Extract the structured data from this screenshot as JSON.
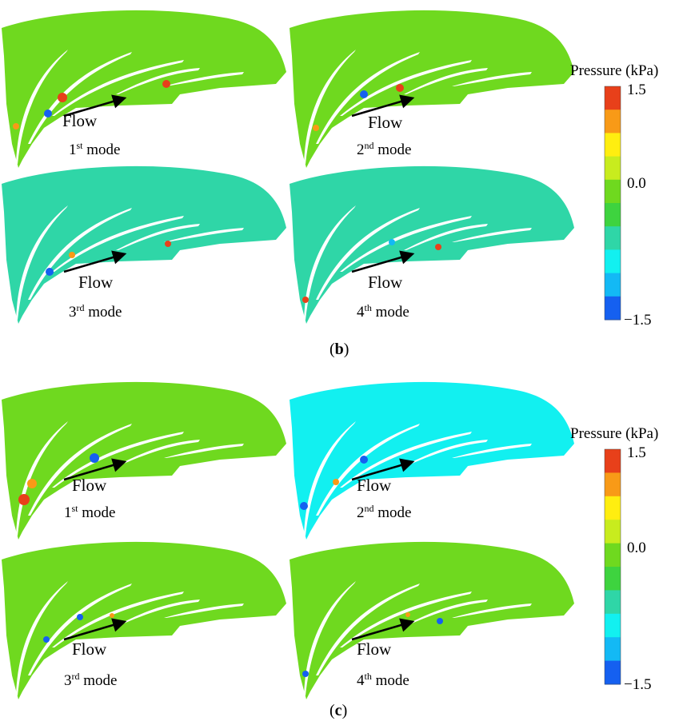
{
  "pressure_scale": {
    "title": "Pressure (kPa)",
    "tick_labels": [
      "1.5",
      "0.0",
      "−1.5"
    ],
    "levels": [
      "#e8401a",
      "#f89a17",
      "#ffee10",
      "#c8ec1e",
      "#6fd91f",
      "#3ed33f",
      "#2fd6a7",
      "#12f0f0",
      "#13b9f5",
      "#1560f0"
    ]
  },
  "panel_b": {
    "label_open": "(",
    "label_letter": "b",
    "label_close": ")",
    "views": [
      {
        "flow": "Flow",
        "ordinal": "1",
        "suffix": "st",
        "mode": " mode",
        "base_color": "#6fd91f"
      },
      {
        "flow": "Flow",
        "ordinal": "2",
        "suffix": "nd",
        "mode": " mode",
        "base_color": "#6fd91f"
      },
      {
        "flow": "Flow",
        "ordinal": "3",
        "suffix": "rd",
        "mode": " mode",
        "base_color": "#2fd6a7"
      },
      {
        "flow": "Flow",
        "ordinal": "4",
        "suffix": "th",
        "mode": "  mode",
        "base_color": "#2fd6a7"
      }
    ]
  },
  "panel_c": {
    "label_open": "(",
    "label_letter": "c",
    "label_close": ")",
    "views": [
      {
        "flow": "Flow",
        "ordinal": "1",
        "suffix": "st",
        "mode": " mode",
        "base_color": "#6fd91f"
      },
      {
        "flow": "Flow",
        "ordinal": "2",
        "suffix": "nd",
        "mode": "  mode",
        "base_color": "#12f0f0"
      },
      {
        "flow": "Flow",
        "ordinal": "3",
        "suffix": "rd",
        "mode": " mode",
        "base_color": "#6fd91f"
      },
      {
        "flow": "Flow",
        "ordinal": "4",
        "suffix": "th",
        "mode": "  mode",
        "base_color": "#6fd91f"
      }
    ]
  }
}
